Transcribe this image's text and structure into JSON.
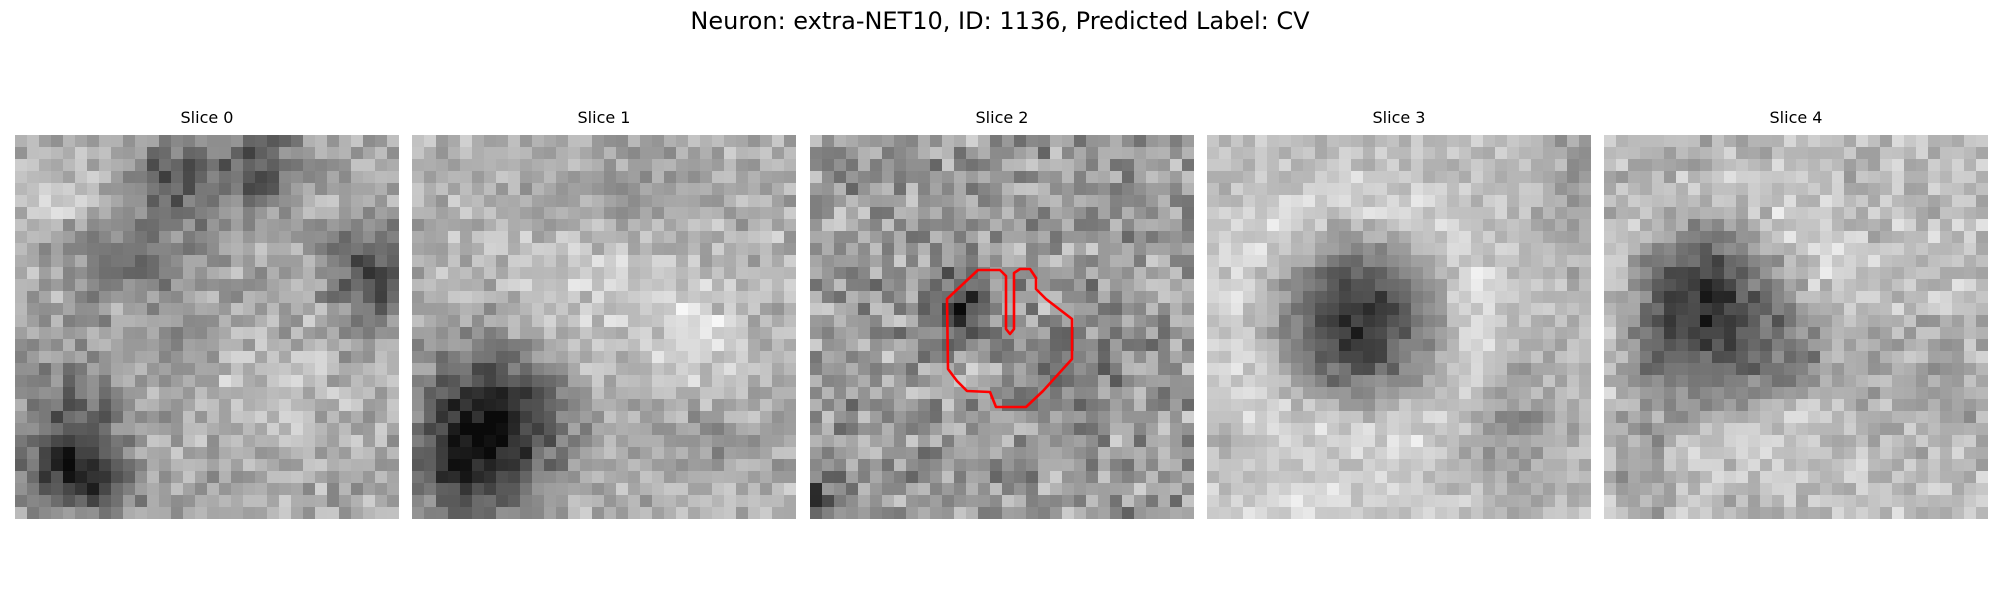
{
  "figure": {
    "title": "Neuron: extra-NET10, ID: 1136, Predicted Label: CV"
  },
  "slices": [
    {
      "title": "Slice 0"
    },
    {
      "title": "Slice 1"
    },
    {
      "title": "Slice 2"
    },
    {
      "title": "Slice 3"
    },
    {
      "title": "Slice 4"
    }
  ],
  "grid": {
    "rows": 32,
    "cols": 32
  },
  "colormap": "gray",
  "outline": {
    "color": "#ff0000",
    "slice": 2
  }
}
